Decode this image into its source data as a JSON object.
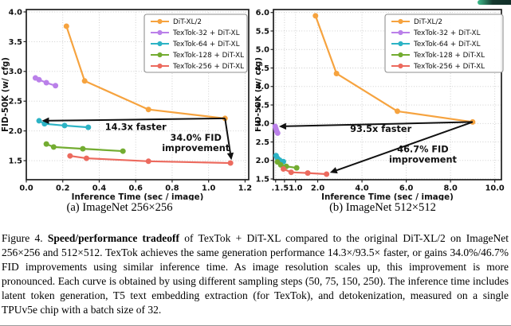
{
  "figure": {
    "subcaption_a": "(a) ImageNet 256×256",
    "subcaption_b": "(b) ImageNet 512×512",
    "caption_prefix": "Figure 4. ",
    "caption_bold": "Speed/performance tradeoff",
    "caption_rest": " of TexTok + DiT-XL compared to the original DiT-XL/2 on ImageNet 256×256 and 512×512. TexTok achieves the same generation performance 14.3×/93.5× faster, or gains 34.0%/46.7% FID improvements using similar inference time. As image resolution scales up, this improvement is more pronounced. Each curve is obtained by using different sampling steps (50, 75, 150, 250). The inference time includes latent token generation, T5 text embedding extraction (for TexTok), and detokenization, measured on a single TPUv5e chip with a batch size of 32."
  },
  "colors": {
    "dit_xl2": "#F6A33F",
    "textok32": "#BA80E9",
    "textok64": "#2CB3C5",
    "textok128": "#73AC31",
    "textok256": "#EC6A5E",
    "arrow": "#111111",
    "grid": "#c9c9c9",
    "spine": "#1f1f1f"
  },
  "chart_data": [
    {
      "name": "imagenet-256-chart",
      "type": "line",
      "title": "",
      "xlabel": "Inference Time (sec / image)",
      "ylabel": "FID-50K (w/ cfg)",
      "xlim": [
        0,
        1.22
      ],
      "ylim": [
        1.18,
        4.04
      ],
      "grid": true,
      "legend_position": "upper right",
      "xticks": [
        {
          "v": 0.0,
          "label": "0.0"
        },
        {
          "v": 0.2,
          "label": "0.2"
        },
        {
          "v": 0.4,
          "label": "0.4"
        },
        {
          "v": 0.6,
          "label": "0.6"
        },
        {
          "v": 0.8,
          "label": "0.8"
        },
        {
          "v": 1.0,
          "label": "1.0"
        },
        {
          "v": 1.2,
          "label": "1.2"
        }
      ],
      "yticks": [
        {
          "v": 1.5,
          "label": "1.5"
        },
        {
          "v": 2.0,
          "label": "2.0"
        },
        {
          "v": 2.5,
          "label": "2.5"
        },
        {
          "v": 3.0,
          "label": "3.0"
        },
        {
          "v": 3.5,
          "label": "3.5"
        },
        {
          "v": 4.0,
          "label": "4.0"
        }
      ],
      "series": [
        {
          "name": "DiT-XL/2",
          "color": "#F6A33F",
          "points": [
            [
              0.22,
              3.76
            ],
            [
              0.32,
              2.84
            ],
            [
              0.67,
              2.36
            ],
            [
              1.09,
              2.21
            ]
          ]
        },
        {
          "name": "TexTok-32 + DiT-XL",
          "color": "#BA80E9",
          "points": [
            [
              0.05,
              2.89
            ],
            [
              0.07,
              2.86
            ],
            [
              0.11,
              2.81
            ],
            [
              0.16,
              2.76
            ]
          ]
        },
        {
          "name": "TexTok-64 + DiT-XL",
          "color": "#2CB3C5",
          "points": [
            [
              0.07,
              2.17
            ],
            [
              0.1,
              2.12
            ],
            [
              0.21,
              2.09
            ],
            [
              0.34,
              2.06
            ]
          ]
        },
        {
          "name": "TexTok-128 + DiT-XL",
          "color": "#73AC31",
          "points": [
            [
              0.11,
              1.78
            ],
            [
              0.15,
              1.73
            ],
            [
              0.31,
              1.7
            ],
            [
              0.53,
              1.66
            ]
          ]
        },
        {
          "name": "TexTok-256 + DiT-XL",
          "color": "#EC6A5E",
          "points": [
            [
              0.24,
              1.58
            ],
            [
              0.33,
              1.54
            ],
            [
              0.67,
              1.49
            ],
            [
              1.12,
              1.46
            ]
          ]
        }
      ],
      "arrows": [
        {
          "from": [
            1.09,
            2.21
          ],
          "to": [
            0.085,
            2.17
          ]
        },
        {
          "from": [
            1.09,
            2.21
          ],
          "to": [
            1.125,
            1.51
          ]
        }
      ],
      "annotations": [
        {
          "text": "14.3x faster",
          "x": 0.6,
          "y": 2.07
        },
        {
          "text": "34.0% FID\nimprovement",
          "x": 0.93,
          "y": 1.8
        }
      ]
    },
    {
      "name": "imagenet-512-chart",
      "type": "line",
      "title": "",
      "xlabel": "Inference Time (sec / image)",
      "ylabel": "FID-50K (w/ cfg)",
      "xlim": [
        0,
        10.3
      ],
      "ylim": [
        1.48,
        6.08
      ],
      "grid": true,
      "legend_position": "upper right",
      "xticks": [
        {
          "v": 0.1,
          "label": ".1"
        },
        {
          "v": 0.5,
          "label": ".5"
        },
        {
          "v": 1.0,
          "label": "1.0"
        },
        {
          "v": 2.0,
          "label": "2.0"
        },
        {
          "v": 4.0,
          "label": "4.0"
        },
        {
          "v": 6.0,
          "label": "6.0"
        },
        {
          "v": 8.0,
          "label": "8.0"
        },
        {
          "v": 10.0,
          "label": "10.0"
        }
      ],
      "yticks": [
        {
          "v": 1.5,
          "label": "1.5"
        },
        {
          "v": 2.0,
          "label": "2.0"
        },
        {
          "v": 2.5,
          "label": "2.5"
        },
        {
          "v": 3.0,
          "label": "3.0"
        },
        {
          "v": 3.5,
          "label": "3.5"
        },
        {
          "v": 4.0,
          "label": "4.0"
        },
        {
          "v": 4.5,
          "label": "4.5"
        },
        {
          "v": 5.0,
          "label": "5.0"
        },
        {
          "v": 5.5,
          "label": "5.5"
        },
        {
          "v": 6.0,
          "label": "6.0"
        }
      ],
      "series": [
        {
          "name": "DiT-XL/2",
          "color": "#F6A33F",
          "points": [
            [
              1.9,
              5.91
            ],
            [
              2.85,
              4.35
            ],
            [
              5.6,
              3.33
            ],
            [
              9.0,
              3.04
            ]
          ]
        },
        {
          "name": "TexTok-32 + DiT-XL",
          "color": "#BA80E9",
          "points": [
            [
              0.08,
              2.92
            ],
            [
              0.11,
              2.86
            ],
            [
              0.14,
              2.8
            ],
            [
              0.19,
              2.74
            ]
          ]
        },
        {
          "name": "TexTok-64 + DiT-XL",
          "color": "#2CB3C5",
          "points": [
            [
              0.12,
              2.13
            ],
            [
              0.18,
              2.06
            ],
            [
              0.28,
              2.01
            ],
            [
              0.45,
              1.97
            ]
          ]
        },
        {
          "name": "TexTok-128 + DiT-XL",
          "color": "#73AC31",
          "points": [
            [
              0.18,
              1.96
            ],
            [
              0.33,
              1.88
            ],
            [
              0.58,
              1.84
            ],
            [
              1.05,
              1.8
            ]
          ]
        },
        {
          "name": "TexTok-256 + DiT-XL",
          "color": "#EC6A5E",
          "points": [
            [
              0.45,
              1.77
            ],
            [
              0.8,
              1.68
            ],
            [
              1.55,
              1.66
            ],
            [
              2.4,
              1.63
            ]
          ]
        }
      ],
      "arrows": [
        {
          "from": [
            9.0,
            3.04
          ],
          "to": [
            0.25,
            2.92
          ]
        },
        {
          "from": [
            9.0,
            3.04
          ],
          "to": [
            2.55,
            1.67
          ]
        }
      ],
      "annotations": [
        {
          "text": "93.5x faster",
          "x": 4.85,
          "y": 2.86
        },
        {
          "text": "46.7% FID\nimprovement",
          "x": 6.75,
          "y": 2.17
        }
      ]
    }
  ]
}
